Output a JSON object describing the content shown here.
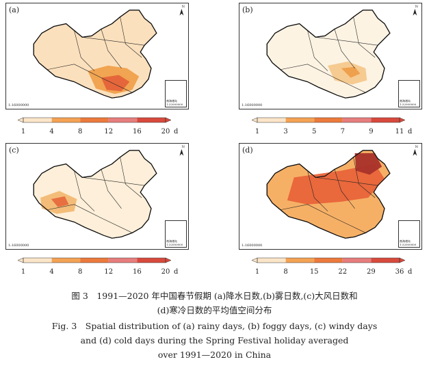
{
  "panels": [
    {
      "label": "(a)",
      "scale": "1:16000000",
      "north": "N",
      "inset_label": "南海诸岛 1:32000000",
      "legend": {
        "ticks": [
          "1",
          "4",
          "8",
          "12",
          "16",
          "20"
        ],
        "unit": "d",
        "colors": [
          "#fbe5c8",
          "#f4a254",
          "#ec7a3c",
          "#e77d7d",
          "#d84a3c"
        ]
      },
      "fill": {
        "base": "#fbe0bd",
        "mid": "#f0a04b",
        "high": "#e4633a"
      }
    },
    {
      "label": "(b)",
      "scale": "1:16000000",
      "north": "N",
      "inset_label": "南海诸岛 1:32000000",
      "legend": {
        "ticks": [
          "1",
          "3",
          "5",
          "7",
          "9",
          "11"
        ],
        "unit": "d",
        "colors": [
          "#fbe5c8",
          "#f4a254",
          "#ec7a3c",
          "#e77d7d",
          "#d84a3c"
        ]
      },
      "fill": {
        "base": "#fdf3e3",
        "mid": "#f5c88c",
        "high": "#ee9d4a"
      }
    },
    {
      "label": "(c)",
      "scale": "1:16000000",
      "north": "N",
      "inset_label": "南海诸岛 1:32000000",
      "legend": {
        "ticks": [
          "1",
          "4",
          "8",
          "12",
          "16",
          "20"
        ],
        "unit": "d",
        "colors": [
          "#fbe5c8",
          "#f4a254",
          "#ec7a3c",
          "#e77d7d",
          "#d84a3c"
        ]
      },
      "fill": {
        "base": "#fdefd9",
        "mid": "#f2b873",
        "high": "#e66a3d"
      }
    },
    {
      "label": "(d)",
      "scale": "1:16000000",
      "north": "N",
      "inset_label": "南海诸岛 1:32000000",
      "legend": {
        "ticks": [
          "1",
          "8",
          "15",
          "22",
          "29",
          "36"
        ],
        "unit": "d",
        "colors": [
          "#fbe5c8",
          "#f4a254",
          "#ec7a3c",
          "#e77d7d",
          "#d84a3c"
        ]
      },
      "fill": {
        "base": "#f6b066",
        "mid": "#e8643a",
        "high": "#a8322a"
      }
    }
  ],
  "caption": {
    "zh_line1": "图 3　1991—2020 年中国春节假期 (a)降水日数,(b)雾日数,(c)大风日数和",
    "zh_line2": "(d)寒冷日数的平均值空间分布",
    "en_line1": "Fig. 3　Spatial distribution of (a) rainy days, (b) foggy days, (c) windy days",
    "en_line2": "and (d) cold days during the Spring Festival holiday averaged",
    "en_line3": "over 1991—2020 in China"
  }
}
